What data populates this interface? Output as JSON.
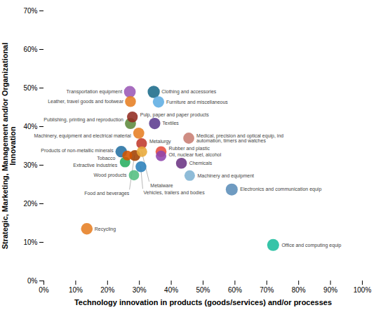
{
  "chart_data": {
    "type": "scatter",
    "xlabel": "Technology innovation in products (goods/services) and/or processes",
    "ylabel": "Strategic, Marketing, Management and/or Organizational\nInnovation",
    "xlim": [
      0.0,
      1.0
    ],
    "ylim": [
      0.0,
      0.7
    ],
    "xticks": [
      {
        "value": 0.0,
        "label": "0%"
      },
      {
        "value": 0.1,
        "label": "10%"
      },
      {
        "value": 0.2,
        "label": "20%"
      },
      {
        "value": 0.3,
        "label": "30%"
      },
      {
        "value": 0.4,
        "label": "40%"
      },
      {
        "value": 0.5,
        "label": "50%"
      },
      {
        "value": 0.6,
        "label": "60%"
      },
      {
        "value": 0.7,
        "label": "70%"
      },
      {
        "value": 0.8,
        "label": "80%"
      },
      {
        "value": 0.9,
        "label": "90%"
      },
      {
        "value": 1.0,
        "label": "100%"
      }
    ],
    "yticks": [
      {
        "value": 0.0,
        "label": "0%"
      },
      {
        "value": 0.1,
        "label": "10%"
      },
      {
        "value": 0.2,
        "label": "20%"
      },
      {
        "value": 0.3,
        "label": "30%"
      },
      {
        "value": 0.4,
        "label": "40%"
      },
      {
        "value": 0.5,
        "label": "50%"
      },
      {
        "value": 0.6,
        "label": "60%"
      },
      {
        "value": 0.7,
        "label": "70%"
      }
    ],
    "grid": false,
    "labels": [
      "Transportation equipment",
      "Leather, travel goods and footwear",
      "Clothing and accessories",
      "Furniture and miscellaneous",
      "Pulp, paper and paper products",
      "Publishing, printing and reproduction",
      "Textiles",
      "Machinery, equipment and electrical material",
      "Metalurgy",
      "Medical, precision and optical equip, ind\nautomation, timers and watches",
      "Products of non-metallic minerals",
      "Tobacco",
      "Metalware",
      "Rubber and plastic",
      "Oil, nuclear fuel, alcohol",
      "Food and beverages",
      "Extractive Industries",
      "Vehicles, trailers and bodies",
      "Chemicals",
      "Wood products",
      "Machinery and equipment",
      "Electronics and communication equip",
      "Recycling",
      "Office and computing equip"
    ],
    "x": [
      0.27,
      0.272,
      0.345,
      0.36,
      0.278,
      0.272,
      0.348,
      0.298,
      0.307,
      0.455,
      0.243,
      0.262,
      0.308,
      0.368,
      0.368,
      0.286,
      0.255,
      0.305,
      0.432,
      0.283,
      0.458,
      0.59,
      0.135,
      0.72
    ],
    "y": [
      0.49,
      0.465,
      0.49,
      0.464,
      0.425,
      0.408,
      0.408,
      0.383,
      0.356,
      0.37,
      0.335,
      0.325,
      0.335,
      0.335,
      0.324,
      0.325,
      0.308,
      0.296,
      0.305,
      0.274,
      0.273,
      0.237,
      0.135,
      0.093
    ],
    "sizes": [
      700,
      600,
      750,
      650,
      580,
      620,
      650,
      620,
      570,
      620,
      680,
      500,
      560,
      600,
      560,
      600,
      560,
      600,
      600,
      540,
      560,
      720,
      680,
      720
    ],
    "colors": [
      "#9B59B6",
      "#E67E22",
      "#1A6B8A",
      "#5DADE2",
      "#922B21",
      "#5D8A3C",
      "#5B3A8E",
      "#E67E22",
      "#C0392B",
      "#C87D72",
      "#2471A3",
      "#D35400",
      "#E8A838",
      "#E74C3C",
      "#8E44AD",
      "#A04000",
      "#27AE60",
      "#2980B9",
      "#6C3483",
      "#52BE80",
      "#7FB3D3",
      "#5B8DB8",
      "#E67E22",
      "#1ABC9C"
    ]
  }
}
